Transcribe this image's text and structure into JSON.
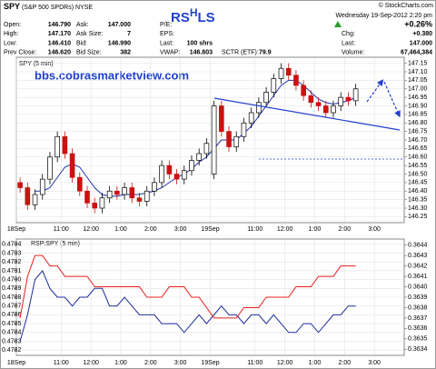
{
  "header": {
    "symbol": "SPY",
    "name": "(S&P 500 SPDRs)",
    "exchange": "NYSE",
    "copyright": "© StockCharts.com",
    "datetime": "Wednesday 19-Sep-2012 2:20 pm",
    "rs_hls": [
      "RS",
      "H",
      "LS"
    ]
  },
  "quote": {
    "columns": [
      [
        [
          "Open:",
          "146.790"
        ],
        [
          "High:",
          "147.170"
        ],
        [
          "Low:",
          "146.410"
        ],
        [
          "Prev Close:",
          "146.620"
        ]
      ],
      [
        [
          "Ask:",
          "147.000"
        ],
        [
          "Ask Size:",
          "7"
        ],
        [
          "Bid:",
          "146.990"
        ],
        [
          "Bid Size:",
          "382"
        ]
      ],
      [
        [
          "P/E:"
        ],
        [
          "EPS:"
        ],
        [
          "Last:",
          "100 shrs"
        ],
        [
          "VWAP:",
          "146.803"
        ]
      ]
    ],
    "sctr": [
      "SCTR (ETF):",
      "79.9"
    ],
    "change_pct": "+0.26%",
    "right": [
      [
        "Chg:",
        "+0.380"
      ],
      [
        "Last:",
        "147.000"
      ],
      [
        "Volume:",
        "67,464,384"
      ]
    ]
  },
  "chart_data": [
    {
      "type": "candlestick",
      "title": "SPY (5 min)",
      "annotation": "bbs.cobrasmarketview.com",
      "categories": [
        "18Sep",
        null,
        null,
        null,
        null,
        null,
        "11:00",
        null,
        null,
        null,
        "12:00",
        null,
        null,
        null,
        "1:00",
        null,
        null,
        null,
        "2:00",
        null,
        null,
        null,
        "3:00",
        null,
        null,
        null,
        "19Sep",
        null,
        null,
        null,
        null,
        null,
        "11:00",
        null,
        null,
        null,
        "12:00",
        null,
        null,
        null,
        "1:00",
        null,
        null,
        null,
        "2:00",
        null,
        null,
        null,
        "3:00",
        null,
        null,
        null
      ],
      "open": [
        146.45,
        146.42,
        146.32,
        146.38,
        146.47,
        146.6,
        146.72,
        146.62,
        146.48,
        146.4,
        146.33,
        146.3,
        146.36,
        146.4,
        146.38,
        146.42,
        146.36,
        146.34,
        146.4,
        146.45,
        146.55,
        146.5,
        146.47,
        146.52,
        146.58,
        146.62,
        146.5,
        146.9,
        146.75,
        146.66,
        146.72,
        146.8,
        146.86,
        146.92,
        146.98,
        147.06,
        147.12,
        147.08,
        147.02,
        146.96,
        146.92,
        146.9,
        146.86,
        146.9,
        146.95,
        146.93,
        null,
        null,
        null,
        null,
        null,
        null
      ],
      "high": [
        146.48,
        146.45,
        146.41,
        146.5,
        146.63,
        146.75,
        146.75,
        146.65,
        146.51,
        146.43,
        146.36,
        146.39,
        146.43,
        146.43,
        146.45,
        146.45,
        146.39,
        146.43,
        146.48,
        146.58,
        146.58,
        146.53,
        146.55,
        146.61,
        146.65,
        146.71,
        146.93,
        146.93,
        146.78,
        146.75,
        146.83,
        146.89,
        146.95,
        147.01,
        147.09,
        147.15,
        147.15,
        147.11,
        147.05,
        146.99,
        146.95,
        146.93,
        146.93,
        146.98,
        146.98,
        147.03,
        null,
        null,
        null,
        null,
        null,
        null
      ],
      "low": [
        146.39,
        146.29,
        146.29,
        146.35,
        146.44,
        146.57,
        146.59,
        146.45,
        146.37,
        146.3,
        146.27,
        146.27,
        146.33,
        146.35,
        146.35,
        146.33,
        146.31,
        146.31,
        146.37,
        146.42,
        146.47,
        146.44,
        146.44,
        146.49,
        146.55,
        146.59,
        146.47,
        146.72,
        146.63,
        146.63,
        146.69,
        146.77,
        146.83,
        146.89,
        146.95,
        147.03,
        147.05,
        146.99,
        146.93,
        146.89,
        146.87,
        146.83,
        146.83,
        146.87,
        146.9,
        146.9,
        null,
        null,
        null,
        null,
        null,
        null
      ],
      "close": [
        146.42,
        146.32,
        146.38,
        146.47,
        146.6,
        146.72,
        146.62,
        146.48,
        146.4,
        146.33,
        146.3,
        146.36,
        146.4,
        146.38,
        146.42,
        146.36,
        146.34,
        146.4,
        146.45,
        146.55,
        146.5,
        146.47,
        146.52,
        146.58,
        146.62,
        146.68,
        146.9,
        146.75,
        146.66,
        146.72,
        146.8,
        146.86,
        146.92,
        146.98,
        147.06,
        147.12,
        147.08,
        147.02,
        146.96,
        146.92,
        146.9,
        146.86,
        146.9,
        146.95,
        146.93,
        147.0,
        null,
        null,
        null,
        null,
        null,
        null
      ],
      "up_color": "#000000",
      "down_color": "#cc1111",
      "series": [
        {
          "color": "#2233aa",
          "values": [
            null,
            null,
            146.4,
            146.4,
            146.42,
            146.48,
            146.54,
            146.56,
            146.54,
            146.48,
            146.42,
            146.38,
            146.37,
            146.37,
            146.38,
            146.38,
            146.38,
            146.39,
            146.4,
            146.42,
            146.45,
            146.48,
            146.5,
            146.53,
            146.57,
            146.6,
            146.65,
            146.7,
            146.7,
            146.7,
            146.74,
            146.78,
            146.84,
            146.9,
            146.96,
            147.02,
            147.05,
            147.05,
            147.02,
            146.98,
            146.94,
            146.92,
            146.91,
            146.92,
            146.93,
            146.95,
            null,
            null,
            null,
            null,
            null,
            null
          ]
        }
      ],
      "ylim": [
        146.22,
        147.18
      ],
      "yticks": [
        147.15,
        {
          "value": 147.1,
          "label": "147.10"
        },
        147.05,
        {
          "value": 147,
          "label": "147.00"
        },
        146.95,
        {
          "value": 146.9,
          "label": "146.90"
        },
        146.85,
        {
          "value": 146.8,
          "label": "146.80"
        },
        146.75,
        {
          "value": 146.7,
          "label": "146.70"
        },
        146.65,
        {
          "value": 146.6,
          "label": "146.60"
        },
        146.55,
        {
          "value": 146.5,
          "label": "146.50"
        },
        146.45,
        {
          "value": 146.4,
          "label": "146.40"
        },
        146.35,
        {
          "value": 146.3,
          "label": "146.30"
        },
        146.25
      ],
      "grid": true
    },
    {
      "type": "line",
      "title": "RSP:SPY (5 min)",
      "categories": [
        "18Sep",
        null,
        null,
        null,
        null,
        null,
        "11:00",
        null,
        null,
        null,
        "12:00",
        null,
        null,
        null,
        "1:00",
        null,
        null,
        null,
        "2:00",
        null,
        null,
        null,
        "3:00",
        null,
        null,
        null,
        "19Sep",
        null,
        null,
        null,
        null,
        null,
        "11:00",
        null,
        null,
        null,
        "12:00",
        null,
        null,
        null,
        "1:00",
        null,
        null,
        null,
        "2:00",
        null,
        null,
        null,
        "3:00",
        null,
        null,
        null
      ],
      "series": [
        {
          "color": "#1c2c9c",
          "values": [
            0.4783,
            0.4786,
            0.479,
            0.4791,
            0.4789,
            0.4788,
            0.4788,
            0.4787,
            0.4788,
            0.4788,
            0.4789,
            0.4789,
            0.4787,
            0.4787,
            0.4788,
            0.4787,
            0.4786,
            0.4786,
            0.4786,
            0.4785,
            0.4785,
            0.4785,
            0.4784,
            0.4785,
            0.4786,
            0.4785,
            0.4786,
            0.4787,
            0.4786,
            0.4786,
            0.4785,
            0.4786,
            0.4786,
            0.4785,
            0.4786,
            0.4785,
            0.4784,
            0.4784,
            0.4785,
            0.4785,
            0.4784,
            0.4785,
            0.4786,
            0.4786,
            0.4787,
            0.4787,
            null,
            null,
            null,
            null,
            null,
            null
          ]
        },
        {
          "color": "#e8201c",
          "axis": "y2",
          "values": [
            0.3637,
            0.3641,
            0.3643,
            0.3643,
            0.3642,
            0.3642,
            0.3641,
            0.3641,
            0.3641,
            0.3641,
            0.364,
            0.364,
            0.364,
            0.364,
            0.364,
            0.364,
            0.364,
            0.3639,
            0.3639,
            0.3639,
            0.364,
            0.364,
            0.364,
            0.3639,
            0.3639,
            0.3638,
            0.3637,
            0.3637,
            0.3637,
            0.3637,
            0.3638,
            0.3638,
            0.3638,
            0.3639,
            0.3639,
            0.3639,
            0.3639,
            0.364,
            0.364,
            0.364,
            0.3641,
            0.3641,
            0.3641,
            0.3642,
            0.3642,
            0.3642,
            null,
            null,
            null,
            null,
            null,
            null
          ]
        }
      ],
      "ylim": [
        0.47815,
        0.47945
      ],
      "yticks": [
        0.4794,
        0.4793,
        0.4792,
        0.4791,
        {
          "value": 0.479,
          "label": "0.4790"
        },
        0.4789,
        0.4788,
        0.4787,
        0.4786,
        0.4785,
        0.4784,
        0.4783,
        0.4782
      ],
      "y2lim": [
        0.36335,
        0.36445
      ],
      "y2ticks": [
        0.3644,
        0.3643,
        0.3642,
        0.3641,
        {
          "value": 0.364,
          "label": "0.3640"
        },
        0.3639,
        0.3638,
        0.3637,
        0.3636,
        0.3635,
        0.3634
      ],
      "grid": true
    }
  ]
}
